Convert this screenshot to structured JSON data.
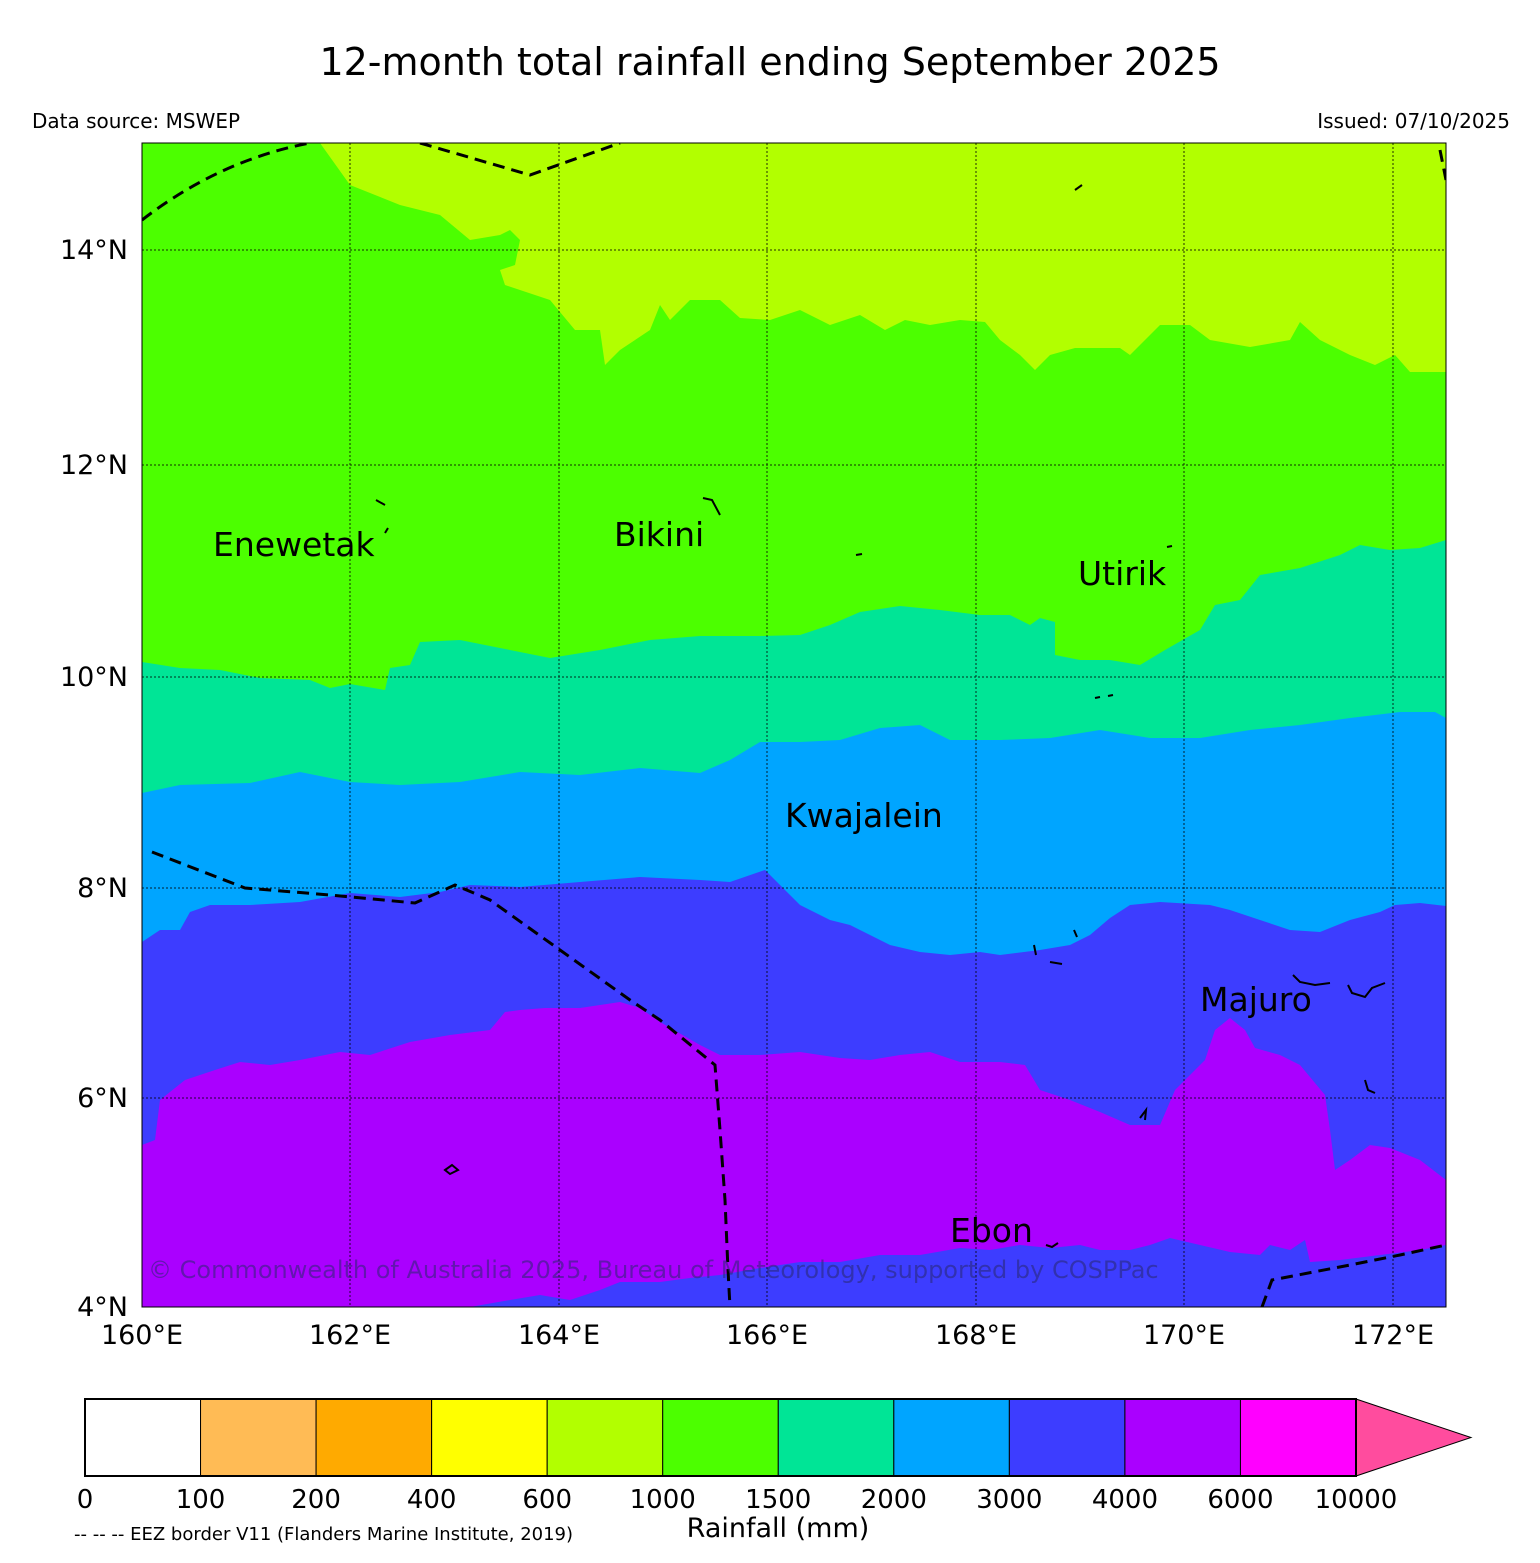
{
  "title": "12-month total rainfall ending September 2025",
  "source": "Data source: MSWEP",
  "issued": "Issued: 07/10/2025",
  "copyright": "© Commonwealth of Australia 2025, Bureau of Meteorology, supported by COSPPac",
  "eez_note": "-- -- -- EEZ border V11 (Flanders Marine Institute, 2019)",
  "colorbar_title": "Rainfall (mm)",
  "lat_labels": [
    "14°N",
    "12°N",
    "10°N",
    "8°N",
    "6°N",
    "4°N"
  ],
  "lon_labels": [
    "160°E",
    "162°E",
    "164°E",
    "166°E",
    "168°E",
    "170°E",
    "172°E"
  ],
  "places": [
    "Enewetak",
    "Bikini",
    "Utirik",
    "Kwajalein",
    "Majuro",
    "Ebon"
  ],
  "colorbar": {
    "bounds": [
      "0",
      "100",
      "200",
      "400",
      "600",
      "1000",
      "1500",
      "2000",
      "3000",
      "4000",
      "6000",
      "10000"
    ],
    "colors": [
      "#ffffff",
      "#ffbb55",
      "#ffaa00",
      "#ffff00",
      "#b2ff00",
      "#4cff00",
      "#00e596",
      "#00a5ff",
      "#3d3dff",
      "#aa00ff",
      "#ff00ff",
      "#ff4c9e"
    ]
  }
}
